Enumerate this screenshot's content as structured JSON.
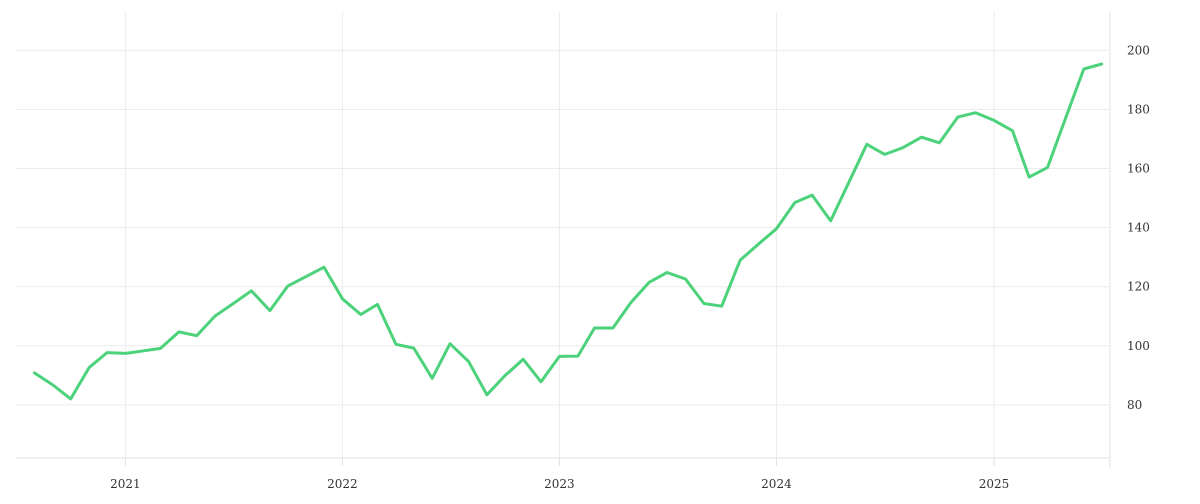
{
  "colors": {
    "background": "#ffffff",
    "grid": "#ececec",
    "axis": "#e2e2e2",
    "line": "#4cd27a",
    "tick_text": "#333333"
  },
  "chart_data": {
    "type": "line",
    "title": "",
    "xlabel": "",
    "ylabel": "",
    "grid": true,
    "legend": "none",
    "y_axis_side": "right",
    "x_is_date": true,
    "xlim": [
      "2020-07-01",
      "2025-07-15"
    ],
    "ylim": [
      62,
      213
    ],
    "x_ticks": [
      {
        "value": "2021-01-01",
        "label": "2021"
      },
      {
        "value": "2022-01-01",
        "label": "2022"
      },
      {
        "value": "2023-01-01",
        "label": "2023"
      },
      {
        "value": "2024-01-01",
        "label": "2024"
      },
      {
        "value": "2025-01-01",
        "label": "2025"
      }
    ],
    "y_ticks": [
      {
        "value": 80,
        "label": "80"
      },
      {
        "value": 100,
        "label": "100"
      },
      {
        "value": 120,
        "label": "120"
      },
      {
        "value": 140,
        "label": "140"
      },
      {
        "value": 160,
        "label": "160"
      },
      {
        "value": 180,
        "label": "180"
      },
      {
        "value": 200,
        "label": "200"
      }
    ],
    "series": [
      {
        "x": [
          "2020-08-01",
          "2020-09-01",
          "2020-10-01",
          "2020-11-01",
          "2020-12-01",
          "2021-01-01",
          "2021-02-01",
          "2021-03-01",
          "2021-04-01",
          "2021-05-01",
          "2021-06-01",
          "2021-07-01",
          "2021-08-01",
          "2021-09-01",
          "2021-10-01",
          "2021-11-01",
          "2021-12-01",
          "2022-01-01",
          "2022-02-01",
          "2022-03-01",
          "2022-04-01",
          "2022-05-01",
          "2022-06-01",
          "2022-07-01",
          "2022-08-01",
          "2022-09-01",
          "2022-10-01",
          "2022-11-01",
          "2022-12-01",
          "2023-01-01",
          "2023-02-01",
          "2023-03-01",
          "2023-04-01",
          "2023-05-01",
          "2023-06-01",
          "2023-07-01",
          "2023-08-01",
          "2023-09-01",
          "2023-10-01",
          "2023-11-01",
          "2023-12-01",
          "2024-01-01",
          "2024-02-01",
          "2024-03-01",
          "2024-04-01",
          "2024-05-01",
          "2024-06-01",
          "2024-07-01",
          "2024-08-01",
          "2024-09-01",
          "2024-10-01",
          "2024-11-01",
          "2024-12-01",
          "2025-01-01",
          "2025-02-01",
          "2025-03-01",
          "2025-04-01",
          "2025-05-01",
          "2025-06-01",
          "2025-07-01"
        ],
        "values": [
          90.8,
          86.7,
          82.0,
          92.6,
          97.7,
          97.4,
          98.3,
          99.1,
          104.7,
          103.4,
          110.1,
          114.2,
          118.6,
          111.9,
          120.2,
          123.4,
          126.6,
          115.9,
          110.6,
          114.0,
          100.5,
          99.2,
          89.0,
          100.7,
          94.7,
          83.4,
          89.8,
          95.4,
          87.8,
          96.4,
          96.5,
          106.0,
          106.0,
          114.6,
          121.5,
          124.8,
          122.6,
          114.3,
          113.4,
          129.0,
          134.3,
          139.6,
          148.5,
          151.0,
          142.3,
          155.0,
          168.2,
          164.8,
          167.1,
          170.6,
          168.7,
          177.4,
          178.9,
          176.3,
          172.8,
          157.1,
          160.4,
          176.9,
          193.7,
          195.4
        ]
      }
    ]
  }
}
